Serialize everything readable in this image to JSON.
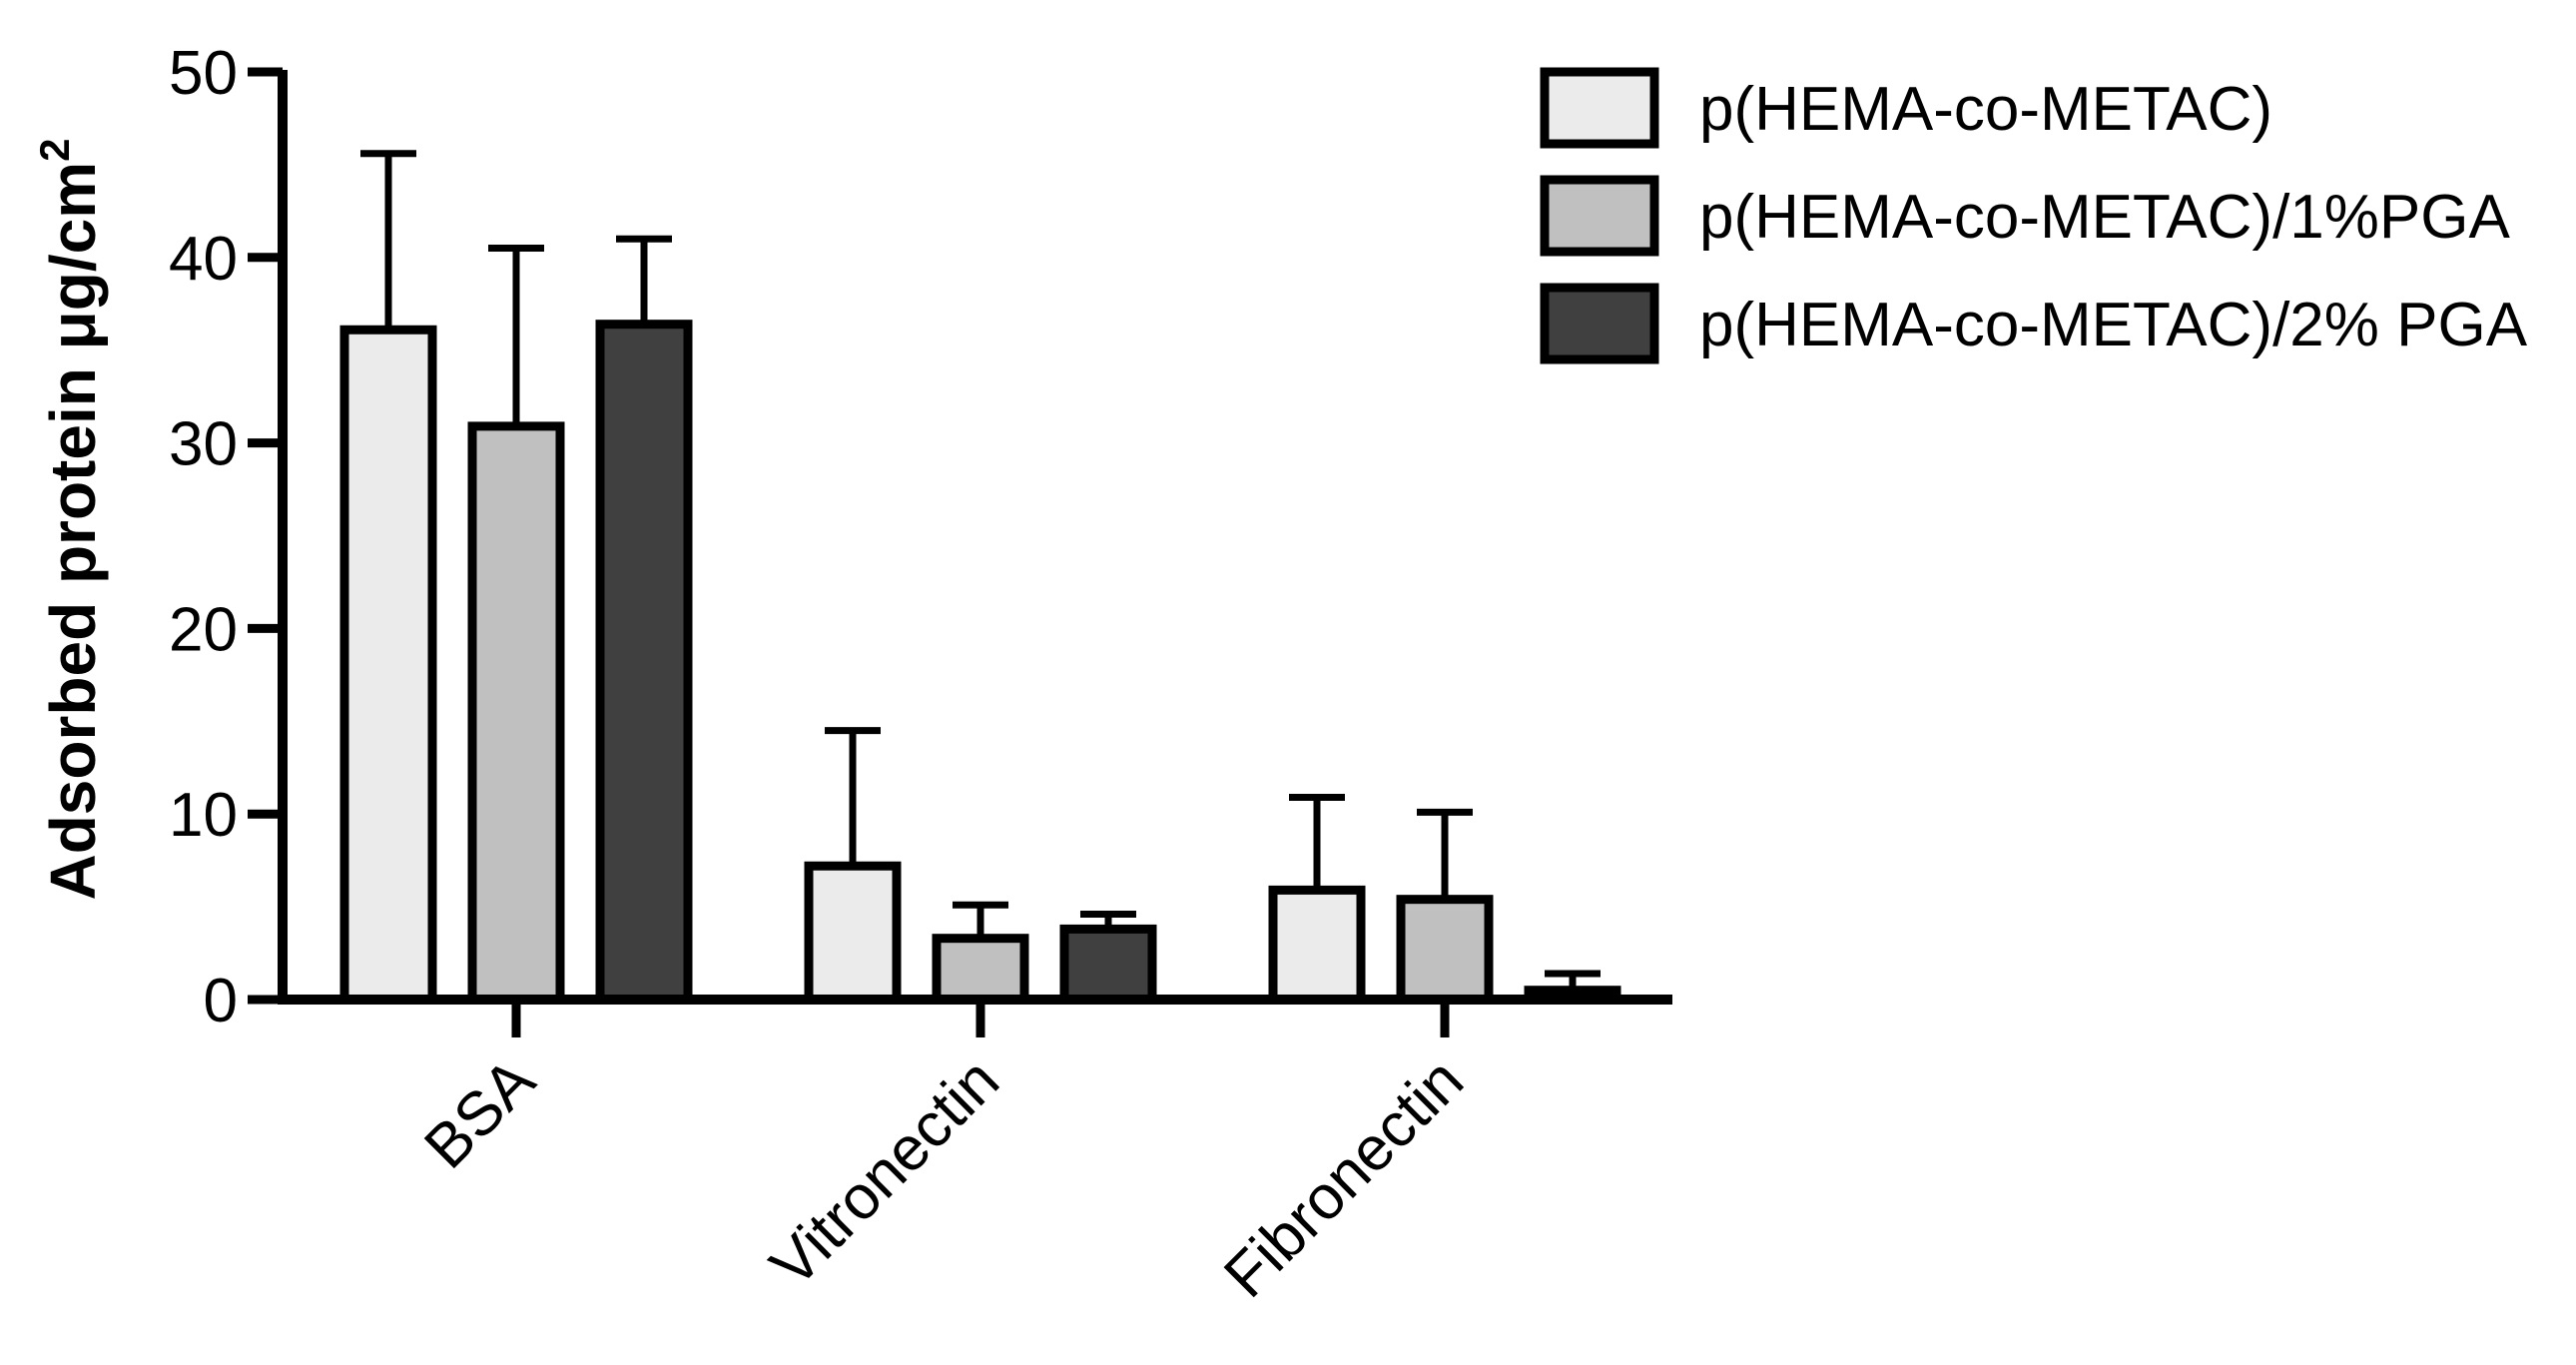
{
  "chart_data": {
    "type": "bar",
    "title": "",
    "xlabel": "",
    "ylabel": "Adsorbed protein μg/cm",
    "ylabel_superscript": "2",
    "ylim": [
      0,
      50
    ],
    "yticks": [
      "0",
      "10",
      "20",
      "30",
      "40",
      "50"
    ],
    "categories": [
      "BSA",
      "Vitronectin",
      "Fibronectin"
    ],
    "series": [
      {
        "name": "p(HEMA-co-METAC)",
        "color": "#ebebeb",
        "values": [
          36.1,
          7.2,
          5.9
        ],
        "errors": [
          9.5,
          7.3,
          5.0
        ]
      },
      {
        "name": "p(HEMA-co-METAC)/1%PGA",
        "color": "#c0c0c0",
        "values": [
          30.9,
          3.3,
          5.4
        ],
        "errors": [
          9.6,
          1.8,
          4.7
        ]
      },
      {
        "name": "p(HEMA-co-METAC)/2% PGA",
        "color": "#404040",
        "values": [
          36.4,
          3.8,
          0.5
        ],
        "errors": [
          4.6,
          0.8,
          0.9
        ]
      }
    ],
    "legend_position": "top-right",
    "grid": false
  }
}
